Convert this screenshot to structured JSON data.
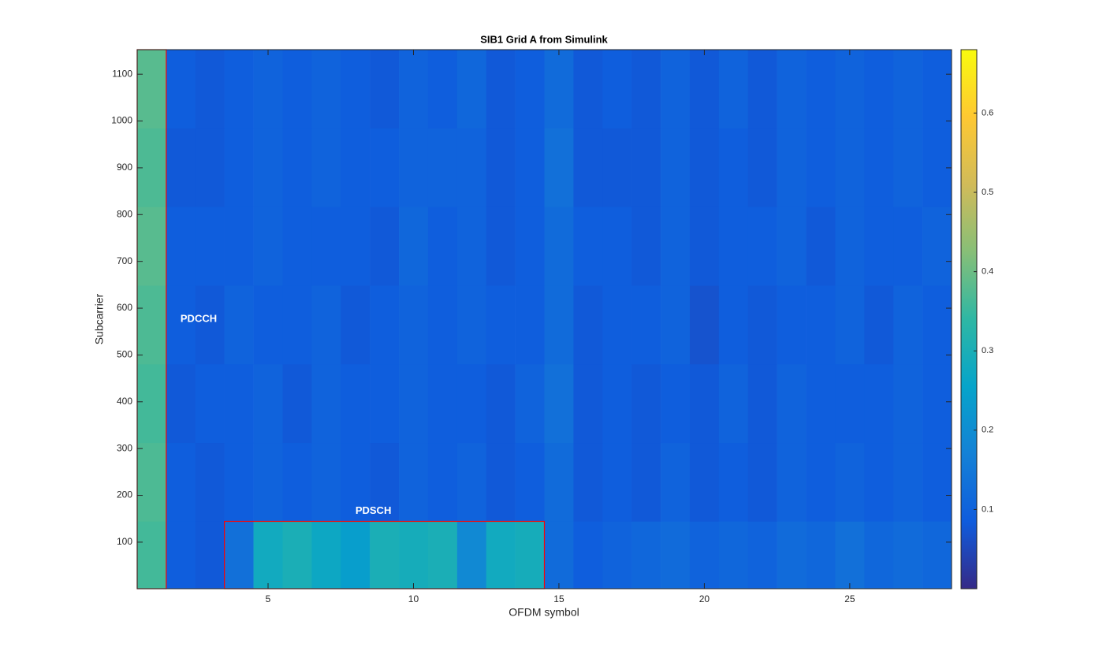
{
  "chart_data": {
    "type": "heatmap",
    "title": "SIB1 Grid A from Simulink",
    "x_label": "OFDM symbol",
    "y_label": "Subcarrier",
    "x": [
      1,
      2,
      3,
      4,
      5,
      6,
      7,
      8,
      9,
      10,
      11,
      12,
      13,
      14,
      15,
      16,
      17,
      18,
      19,
      20,
      21,
      22,
      23,
      24,
      25,
      26,
      27,
      28
    ],
    "y_bins": [
      0.5,
      144.5,
      312.5,
      480.5,
      648.5,
      816.5,
      984.5,
      1152.5
    ],
    "z": [
      [
        0.36,
        0.09,
        0.08,
        0.13,
        0.28,
        0.3,
        0.27,
        0.24,
        0.3,
        0.29,
        0.3,
        0.19,
        0.28,
        0.29,
        0.12,
        0.09,
        0.1,
        0.11,
        0.12,
        0.1,
        0.11,
        0.1,
        0.12,
        0.11,
        0.13,
        0.11,
        0.12,
        0.11
      ],
      [
        0.37,
        0.09,
        0.08,
        0.09,
        0.1,
        0.09,
        0.1,
        0.09,
        0.08,
        0.1,
        0.09,
        0.1,
        0.08,
        0.09,
        0.12,
        0.08,
        0.09,
        0.08,
        0.1,
        0.08,
        0.09,
        0.08,
        0.1,
        0.09,
        0.1,
        0.09,
        0.1,
        0.09
      ],
      [
        0.36,
        0.08,
        0.09,
        0.09,
        0.1,
        0.08,
        0.1,
        0.09,
        0.09,
        0.1,
        0.09,
        0.09,
        0.08,
        0.1,
        0.13,
        0.08,
        0.09,
        0.08,
        0.09,
        0.08,
        0.1,
        0.08,
        0.1,
        0.09,
        0.09,
        0.09,
        0.1,
        0.09
      ],
      [
        0.37,
        0.09,
        0.08,
        0.1,
        0.09,
        0.09,
        0.1,
        0.08,
        0.09,
        0.1,
        0.09,
        0.1,
        0.09,
        0.09,
        0.12,
        0.08,
        0.09,
        0.09,
        0.1,
        0.07,
        0.09,
        0.08,
        0.09,
        0.09,
        0.1,
        0.08,
        0.1,
        0.09
      ],
      [
        0.38,
        0.09,
        0.09,
        0.09,
        0.1,
        0.09,
        0.09,
        0.09,
        0.08,
        0.11,
        0.09,
        0.1,
        0.08,
        0.09,
        0.12,
        0.09,
        0.09,
        0.08,
        0.1,
        0.08,
        0.09,
        0.09,
        0.1,
        0.08,
        0.1,
        0.09,
        0.09,
        0.1
      ],
      [
        0.37,
        0.08,
        0.08,
        0.09,
        0.1,
        0.09,
        0.1,
        0.09,
        0.09,
        0.1,
        0.1,
        0.1,
        0.08,
        0.09,
        0.13,
        0.08,
        0.08,
        0.08,
        0.1,
        0.08,
        0.09,
        0.08,
        0.1,
        0.09,
        0.1,
        0.09,
        0.1,
        0.09
      ],
      [
        0.38,
        0.09,
        0.08,
        0.09,
        0.1,
        0.09,
        0.1,
        0.09,
        0.08,
        0.1,
        0.09,
        0.11,
        0.08,
        0.09,
        0.12,
        0.08,
        0.09,
        0.08,
        0.1,
        0.08,
        0.1,
        0.08,
        0.1,
        0.09,
        0.1,
        0.09,
        0.1,
        0.09
      ]
    ],
    "xlim": [
      0.5,
      28.5
    ],
    "ylim": [
      0.5,
      1152.5
    ],
    "xticks": [
      5,
      10,
      15,
      20,
      25
    ],
    "yticks": [
      100,
      200,
      300,
      400,
      500,
      600,
      700,
      800,
      900,
      1000,
      1100
    ],
    "clim": [
      0,
      0.68
    ],
    "cticks": [
      0.1,
      0.2,
      0.3,
      0.4,
      0.5,
      0.6
    ],
    "colormap": [
      "#352a87",
      "#0f5cdd",
      "#1481d6",
      "#06a4ca",
      "#2eb7a4",
      "#87bf77",
      "#d1bb59",
      "#fec832",
      "#f9fb0e"
    ],
    "regions": [
      {
        "label": "PDCCH",
        "x": [
          0.5,
          1.5
        ],
        "y": [
          0.5,
          1152.5
        ],
        "color": "#ff0000"
      },
      {
        "label": "PDSCH",
        "x": [
          3.5,
          14.5
        ],
        "y": [
          0.5,
          144.5
        ],
        "color": "#ff0000"
      }
    ]
  }
}
